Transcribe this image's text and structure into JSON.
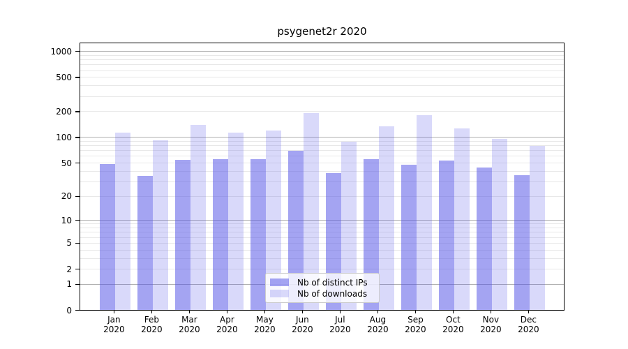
{
  "title": "psygenet2r 2020",
  "chart_data": {
    "type": "bar",
    "title": "psygenet2r 2020",
    "categories": [
      "Jan 2020",
      "Feb 2020",
      "Mar 2020",
      "Apr 2020",
      "May 2020",
      "Jun 2020",
      "Jul 2020",
      "Aug 2020",
      "Sep 2020",
      "Oct 2020",
      "Nov 2020",
      "Dec 2020"
    ],
    "series": [
      {
        "name": "Nb of distinct IPs",
        "values": [
          49,
          35,
          55,
          56,
          56,
          70,
          38,
          56,
          48,
          54,
          44,
          36
        ],
        "fill": "rgba(80,80,230,0.52)",
        "hex": "#a5a5f2"
      },
      {
        "name": "Nb of downloads",
        "values": [
          114,
          93,
          140,
          114,
          120,
          193,
          89,
          135,
          182,
          128,
          97,
          80
        ],
        "fill": "rgba(80,80,230,0.22)",
        "hex": "#d9d9f8"
      }
    ],
    "y_axis": {
      "scale": "log10(value+1)",
      "ticks": [
        0,
        1,
        2,
        5,
        10,
        20,
        50,
        100,
        200,
        500,
        1000
      ],
      "major_gridlines": [
        1,
        10,
        100,
        1000
      ],
      "ylim": [
        0,
        1270
      ]
    },
    "grid": true,
    "legend": {
      "position": "lower center"
    },
    "colors": {
      "bar_dark": "#a5a5f2",
      "bar_light": "#d9d9f8",
      "grid_minor": "#e8e8e8",
      "grid_major": "#b0b0b0",
      "axis": "#000000",
      "legend_border": "#cccccc"
    }
  }
}
